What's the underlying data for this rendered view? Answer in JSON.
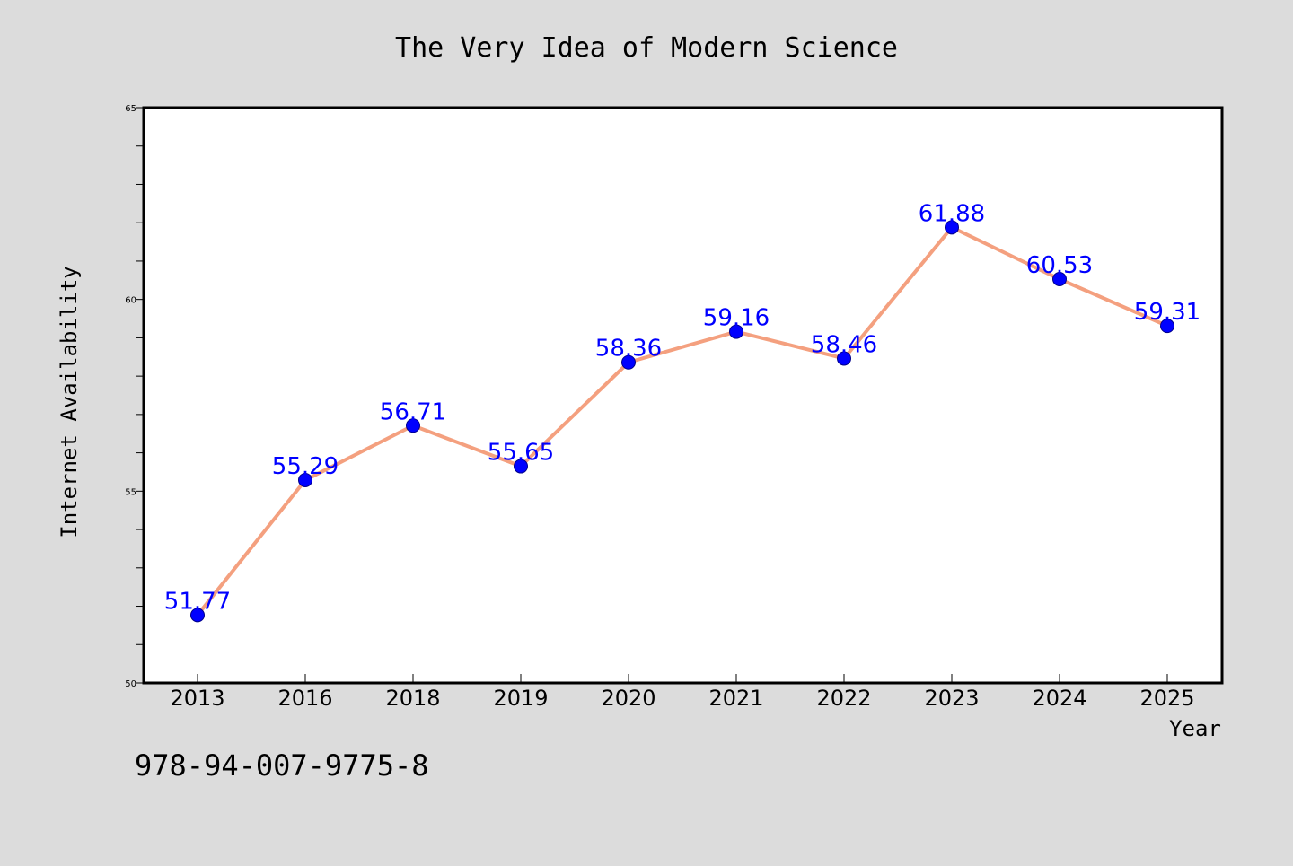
{
  "chart_data": {
    "type": "line",
    "title": "The Very Idea of Modern Science",
    "xlabel": "Year",
    "ylabel": "Internet Availability",
    "categories": [
      "2013",
      "2016",
      "2018",
      "2019",
      "2020",
      "2021",
      "2022",
      "2023",
      "2024",
      "2025"
    ],
    "values": [
      51.77,
      55.29,
      56.71,
      55.65,
      58.36,
      59.16,
      58.46,
      61.88,
      60.53,
      59.31
    ],
    "data_labels": [
      "51.77",
      "55.29",
      "56.71",
      "55.65",
      "58.36",
      "59.16",
      "58.46",
      "61.88",
      "60.53",
      "59.31"
    ],
    "ylim": [
      50,
      65
    ],
    "y_major_ticks": [
      50,
      55,
      60,
      65
    ],
    "y_minor_tick_step": 1,
    "grid": false,
    "legend": "none",
    "line_color": "#f4a07f",
    "marker_color": "#0000ff",
    "label_color": "#0000ff"
  },
  "footer": {
    "isbn": "978-94-007-9775-8"
  },
  "colors": {
    "background": "#dcdcdc",
    "plot_background": "#ffffff"
  }
}
